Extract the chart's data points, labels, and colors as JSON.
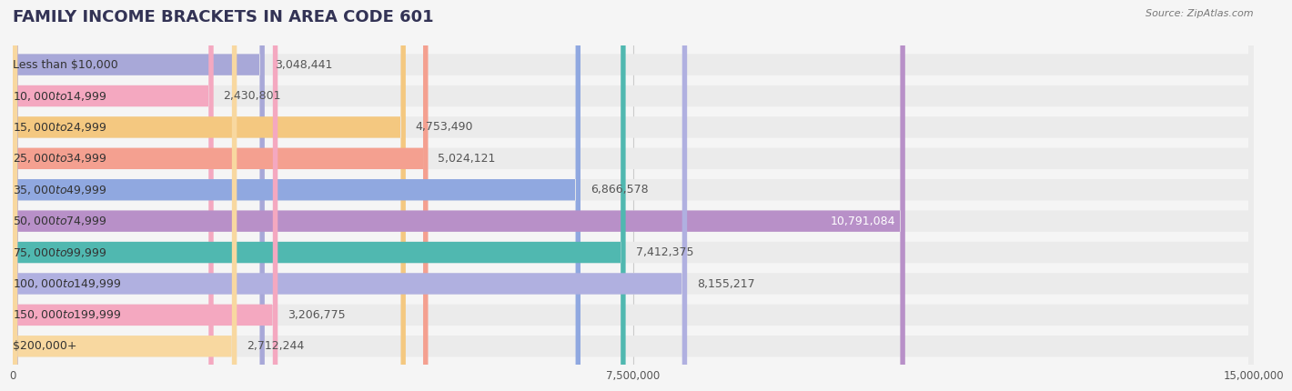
{
  "title": "FAMILY INCOME BRACKETS IN AREA CODE 601",
  "source": "Source: ZipAtlas.com",
  "categories": [
    "Less than $10,000",
    "$10,000 to $14,999",
    "$15,000 to $24,999",
    "$25,000 to $34,999",
    "$35,000 to $49,999",
    "$50,000 to $74,999",
    "$75,000 to $99,999",
    "$100,000 to $149,999",
    "$150,000 to $199,999",
    "$200,000+"
  ],
  "values": [
    3048441,
    2430801,
    4753490,
    5024121,
    6866578,
    10791084,
    7412375,
    8155217,
    3206775,
    2712244
  ],
  "bar_colors": [
    "#a8a8d8",
    "#f4a8c0",
    "#f4c880",
    "#f4a090",
    "#90a8e0",
    "#b890c8",
    "#50b8b0",
    "#b0b0e0",
    "#f4a8c0",
    "#f8d8a0"
  ],
  "xlim": [
    0,
    15000000
  ],
  "xticks": [
    0,
    7500000,
    15000000
  ],
  "xtick_labels": [
    "0",
    "7,500,000",
    "15,000,000"
  ],
  "background_color": "#f5f5f5",
  "bar_background_color": "#ebebeb",
  "title_fontsize": 13,
  "label_fontsize": 9,
  "value_fontsize": 9
}
